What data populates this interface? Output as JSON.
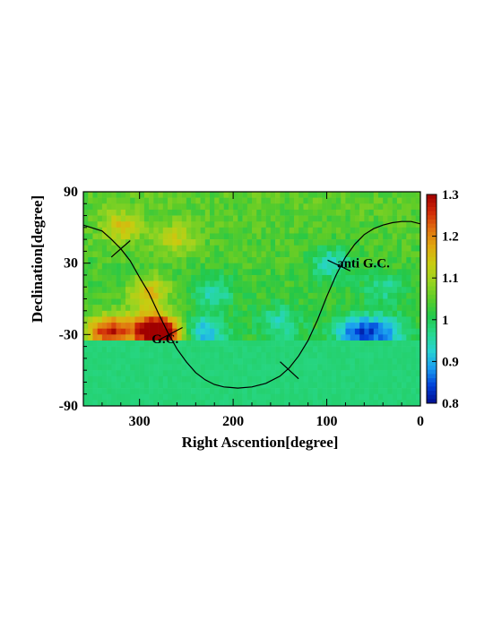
{
  "chart_data": {
    "type": "heatmap",
    "title": "",
    "xlabel": "Right Ascention[degree]",
    "ylabel": "Declination[degree]",
    "xlim": [
      360,
      0
    ],
    "ylim": [
      -90,
      90
    ],
    "x_reversed": true,
    "x_ticks": [
      "300",
      "200",
      "100",
      "0"
    ],
    "x_tick_values": [
      300,
      200,
      100,
      0
    ],
    "y_ticks": [
      "90",
      "30",
      "-30",
      "-90"
    ],
    "y_tick_values": [
      90,
      30,
      -30,
      -90
    ],
    "colorbar": {
      "min": 0.8,
      "max": 1.3,
      "ticks": [
        "0.8",
        "0.9",
        "1",
        "1.1",
        "1.2",
        "1.3"
      ],
      "tick_values": [
        0.8,
        0.9,
        1.0,
        1.1,
        1.2,
        1.3
      ],
      "colors": [
        "#000e8f",
        "#0040d8",
        "#1a9cf0",
        "#27d2d2",
        "#27d88c",
        "#22c84a",
        "#5ccc28",
        "#9ad420",
        "#c8cc10",
        "#e0a810",
        "#e07010",
        "#d02808",
        "#a00000"
      ]
    },
    "background_value": 0.98,
    "observed_dec_max": -35,
    "features": [
      {
        "ra": 275,
        "dec": -30,
        "value": 1.27
      },
      {
        "ra": 290,
        "dec": -25,
        "value": 1.18
      },
      {
        "ra": 325,
        "dec": -28,
        "value": 1.15
      },
      {
        "ra": 340,
        "dec": -28,
        "value": 1.13
      },
      {
        "ra": 290,
        "dec": 5,
        "value": 1.12
      },
      {
        "ra": 320,
        "dec": 60,
        "value": 1.1
      },
      {
        "ra": 260,
        "dec": 50,
        "value": 1.08
      },
      {
        "ra": 70,
        "dec": -28,
        "value": 0.85
      },
      {
        "ra": 40,
        "dec": -28,
        "value": 0.86
      },
      {
        "ra": 95,
        "dec": 30,
        "value": 0.9
      },
      {
        "ra": 220,
        "dec": 5,
        "value": 0.92
      },
      {
        "ra": 230,
        "dec": -28,
        "value": 0.88
      },
      {
        "ra": 150,
        "dec": -20,
        "value": 0.92
      },
      {
        "ra": 40,
        "dec": 10,
        "value": 0.93
      }
    ],
    "galactic_plane": [
      [
        360,
        62
      ],
      [
        340,
        57
      ],
      [
        330,
        50
      ],
      [
        320,
        42
      ],
      [
        310,
        32
      ],
      [
        300,
        18
      ],
      [
        290,
        5
      ],
      [
        280,
        -12
      ],
      [
        270,
        -28
      ],
      [
        260,
        -42
      ],
      [
        250,
        -53
      ],
      [
        240,
        -62
      ],
      [
        230,
        -68
      ],
      [
        220,
        -72
      ],
      [
        210,
        -74
      ],
      [
        195,
        -75
      ],
      [
        180,
        -74
      ],
      [
        165,
        -71
      ],
      [
        150,
        -65
      ],
      [
        140,
        -58
      ],
      [
        130,
        -48
      ],
      [
        120,
        -35
      ],
      [
        110,
        -18
      ],
      [
        100,
        2
      ],
      [
        90,
        20
      ],
      [
        80,
        35
      ],
      [
        70,
        46
      ],
      [
        60,
        54
      ],
      [
        50,
        59
      ],
      [
        40,
        62
      ],
      [
        30,
        64
      ],
      [
        20,
        65
      ],
      [
        10,
        65
      ],
      [
        0,
        63
      ]
    ],
    "markers": [
      {
        "label": "",
        "ra": 320,
        "dec": 42
      },
      {
        "label": "G.C.",
        "ra": 266,
        "dec": -29
      },
      {
        "label": "",
        "ra": 140,
        "dec": -60
      },
      {
        "label": "anti G.C.",
        "ra": 87,
        "dec": 28
      }
    ]
  }
}
